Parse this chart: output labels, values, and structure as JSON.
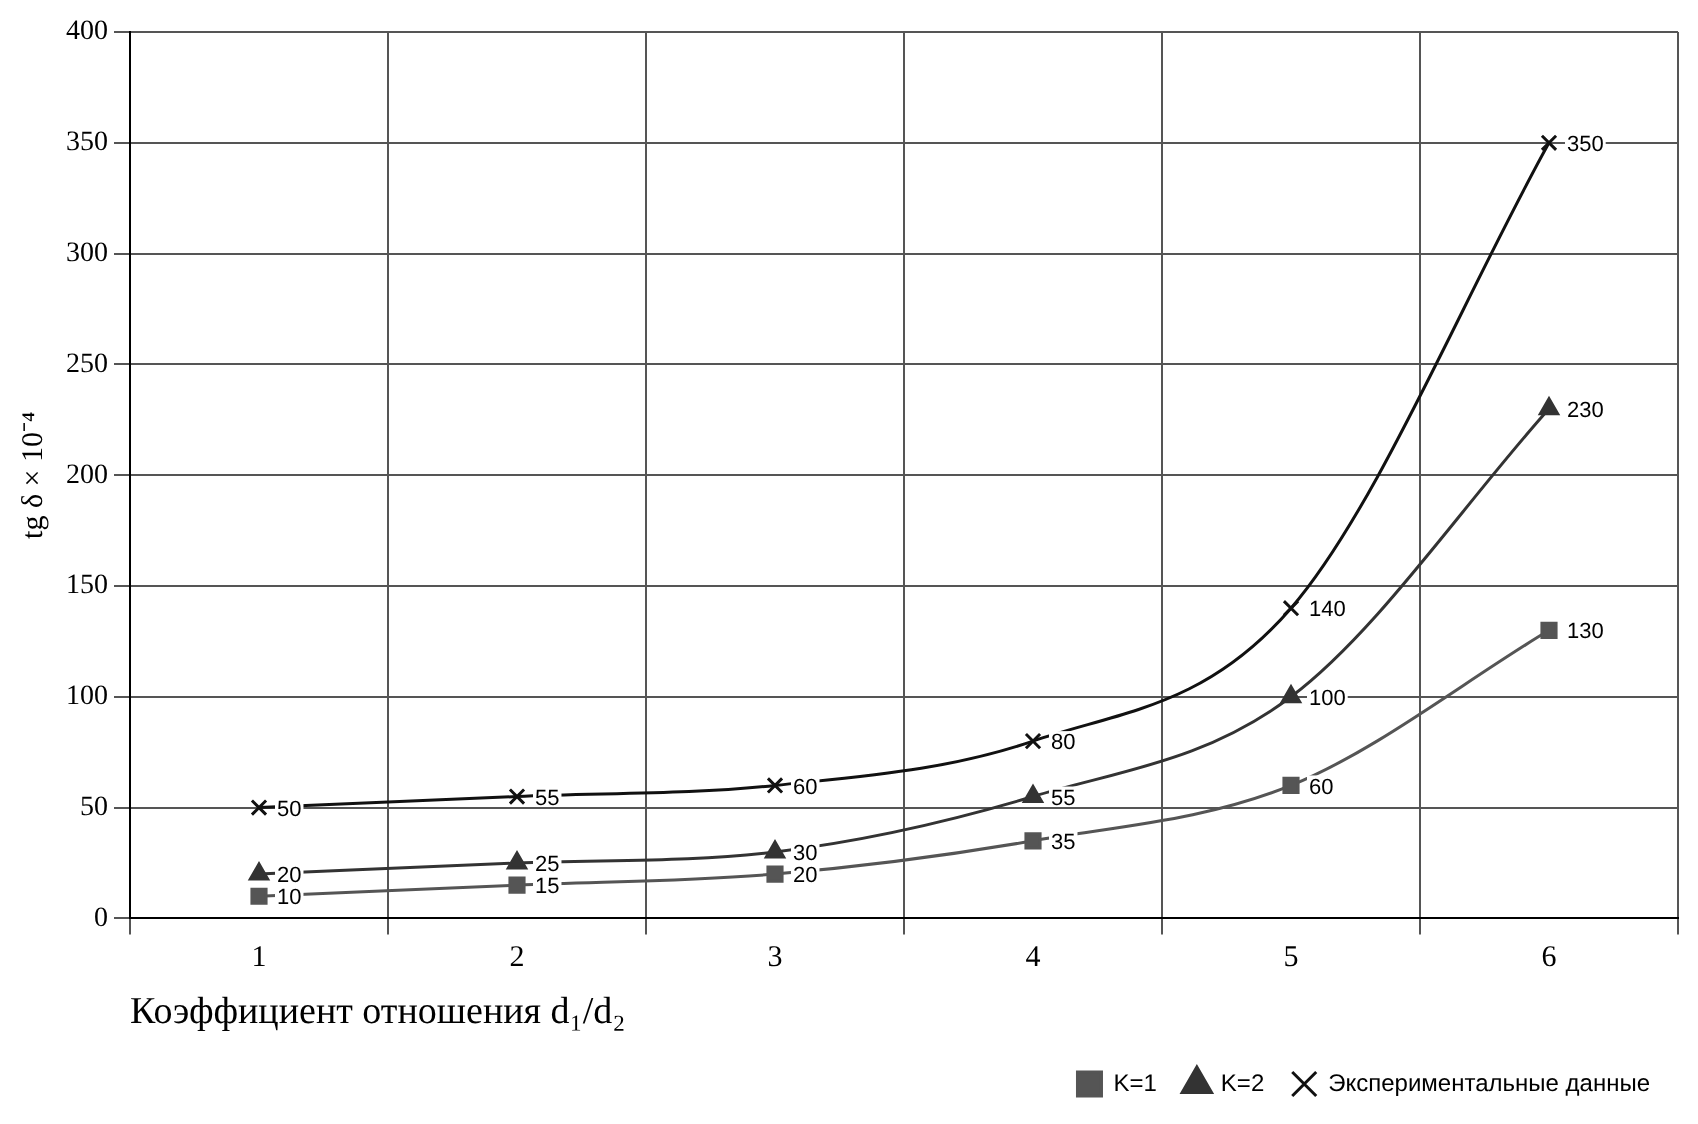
{
  "chart_data": {
    "type": "line",
    "xlabel": "Коэффициент отношения d₁/d₂",
    "ylabel": "tg δ × 10⁻⁴",
    "categories": [
      "1",
      "2",
      "3",
      "4",
      "5",
      "6"
    ],
    "series": [
      {
        "name": "K=1",
        "color": "#555555",
        "marker": "square",
        "values": [
          10,
          15,
          20,
          35,
          60,
          130
        ]
      },
      {
        "name": "K=2",
        "color": "#333333",
        "marker": "triangle",
        "values": [
          20,
          25,
          30,
          55,
          100,
          230
        ]
      },
      {
        "name": "Экспериментальные данные",
        "color": "#111111",
        "marker": "cross",
        "values": [
          50,
          55,
          60,
          80,
          140,
          350
        ]
      }
    ],
    "ylim": [
      0,
      400
    ],
    "yticks": [
      0,
      50,
      100,
      150,
      200,
      250,
      300,
      350,
      400
    ],
    "grid": true,
    "legend": "bottom right",
    "data_labels": true
  }
}
